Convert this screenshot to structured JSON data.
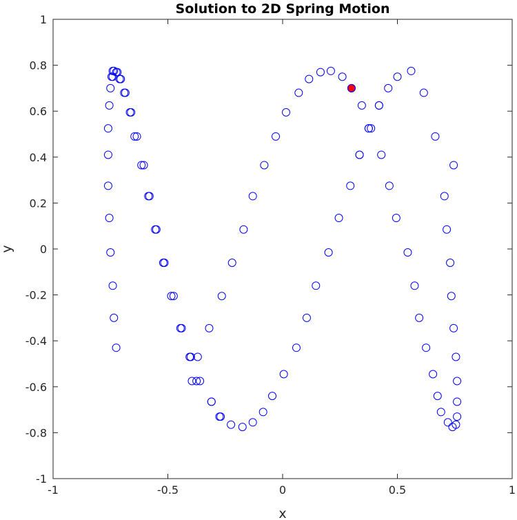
{
  "chart_data": {
    "type": "scatter",
    "title": "Solution to 2D Spring Motion",
    "xlabel": "x",
    "ylabel": "y",
    "xlim": [
      -1,
      1
    ],
    "ylim": [
      -1,
      1
    ],
    "xticks": [
      "-1",
      "-0.5",
      "0",
      "0.5",
      "1"
    ],
    "yticks": [
      "-1",
      "-0.8",
      "-0.6",
      "-0.4",
      "-0.2",
      "0",
      "0.2",
      "0.4",
      "0.6",
      "0.8",
      "1"
    ],
    "grid": false,
    "colors": {
      "marker": "#0000ff",
      "highlight_fill": "#ff0000",
      "highlight_edge": "#0000ff"
    },
    "series": [
      {
        "marker": "open-circle",
        "x": [
          -0.745,
          -0.735,
          -0.72,
          -0.705,
          -0.69,
          -0.665,
          -0.645,
          -0.615,
          -0.585,
          -0.555,
          -0.52,
          -0.485,
          -0.445,
          -0.405,
          -0.395,
          -0.375,
          -0.37,
          -0.32,
          -0.31,
          -0.275,
          -0.265,
          -0.22,
          -0.17,
          -0.13,
          -0.08,
          -0.03,
          0.015,
          0.07,
          0.115,
          0.165,
          0.21,
          0.26,
          0.295,
          0.345,
          0.335,
          0.375,
          0.385,
          0.42,
          0.43,
          0.465,
          0.495,
          0.545,
          0.575,
          0.595,
          0.625,
          0.655,
          0.675,
          0.69,
          0.72,
          0.74,
          0.755,
          0.76,
          0.76,
          0.76,
          0.755,
          0.745,
          0.705,
          0.715,
          0.73,
          0.735,
          0.745,
          0.665,
          0.615,
          0.56,
          0.5,
          0.46,
          0.42,
          0.375,
          0.335,
          0.3,
          0.245,
          0.2,
          0.145,
          0.105,
          0.06,
          0.005,
          -0.045,
          -0.085,
          -0.13,
          -0.175,
          -0.225,
          -0.27,
          -0.31,
          -0.36,
          -0.4,
          -0.44,
          -0.475,
          -0.515,
          -0.55,
          -0.58,
          -0.605,
          -0.635,
          -0.66,
          -0.685,
          -0.71,
          -0.725,
          -0.74,
          -0.74,
          -0.75,
          -0.755,
          -0.76,
          -0.76,
          -0.76,
          -0.755,
          -0.75,
          -0.74,
          -0.735,
          -0.725
        ],
        "y": [
          0.75,
          0.775,
          0.77,
          0.74,
          0.68,
          0.595,
          0.49,
          0.365,
          0.23,
          0.085,
          -0.06,
          -0.205,
          -0.345,
          -0.47,
          -0.575,
          -0.575,
          -0.47,
          -0.345,
          -0.665,
          -0.73,
          -0.205,
          -0.06,
          0.085,
          0.23,
          0.365,
          0.49,
          0.595,
          0.68,
          0.74,
          0.77,
          0.775,
          0.75,
          0.275,
          0.625,
          0.41,
          0.525,
          0.525,
          0.625,
          0.41,
          0.275,
          0.135,
          -0.015,
          -0.16,
          -0.3,
          -0.43,
          -0.545,
          -0.64,
          -0.71,
          -0.755,
          -0.775,
          -0.765,
          -0.73,
          -0.665,
          -0.575,
          -0.47,
          -0.345,
          0.23,
          0.085,
          -0.06,
          -0.205,
          0.365,
          0.49,
          0.68,
          0.775,
          0.75,
          0.7,
          0.625,
          0.525,
          0.41,
          0.7,
          0.135,
          -0.015,
          -0.16,
          -0.3,
          -0.43,
          -0.545,
          -0.64,
          -0.71,
          -0.755,
          -0.775,
          -0.765,
          -0.73,
          -0.665,
          -0.575,
          -0.47,
          -0.345,
          -0.205,
          -0.06,
          0.085,
          0.23,
          0.365,
          0.49,
          0.595,
          0.68,
          0.74,
          0.77,
          0.775,
          0.75,
          0.7,
          0.625,
          0.525,
          0.41,
          0.275,
          0.135,
          -0.015,
          -0.16,
          -0.3,
          -0.43
        ]
      }
    ],
    "highlight": {
      "x": 0.3,
      "y": 0.7
    }
  }
}
